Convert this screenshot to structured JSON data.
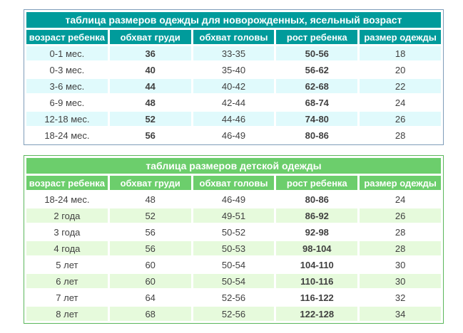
{
  "page": {
    "background": "#ffffff"
  },
  "tables": [
    {
      "id": "newborn-sizes",
      "title": "таблица размеров одежды для новорожденных, ясельный возраст",
      "headers": [
        "возраст ребенка",
        "обхват груди",
        "обхват головы",
        "рост ребенка",
        "размер одежды"
      ],
      "rows": [
        [
          "0-1 мес.",
          "36",
          "33-35",
          "50-56",
          "18"
        ],
        [
          "0-3 мес.",
          "40",
          "35-40",
          "56-62",
          "20"
        ],
        [
          "3-6 мес.",
          "44",
          "40-42",
          "62-68",
          "22"
        ],
        [
          "6-9 мес.",
          "48",
          "42-44",
          "68-74",
          "24"
        ],
        [
          "12-18 мес.",
          "52",
          "44-46",
          "74-80",
          "26"
        ],
        [
          "18-24 мес.",
          "56",
          "46-49",
          "80-86",
          "28"
        ]
      ],
      "bold_columns": [
        1,
        3
      ],
      "striped_rows": "even",
      "colors": {
        "header_bg": "#009b9b",
        "header_text": "#ffffff",
        "stripe_bg": "#e0fafc",
        "row_bg": "#ffffff",
        "border": "#7f9db9",
        "text": "#404040"
      }
    },
    {
      "id": "children-sizes",
      "title": "таблица размеров детской одежды",
      "headers": [
        "возраст ребенка",
        "обхват груди",
        "обхват головы",
        "рост ребенка",
        "размер одежды"
      ],
      "rows": [
        [
          "18-24 мес.",
          "48",
          "46-49",
          "80-86",
          "24"
        ],
        [
          "2 года",
          "52",
          "49-51",
          "86-92",
          "26"
        ],
        [
          "3 года",
          "56",
          "50-52",
          "92-98",
          "28"
        ],
        [
          "4 года",
          "56",
          "50-53",
          "98-104",
          "28"
        ],
        [
          "5 лет",
          "60",
          "50-54",
          "104-110",
          "30"
        ],
        [
          "6 лет",
          "60",
          "50-54",
          "110-116",
          "30"
        ],
        [
          "7 лет",
          "64",
          "52-56",
          "116-122",
          "32"
        ],
        [
          "8 лет",
          "68",
          "52-56",
          "122-128",
          "34"
        ]
      ],
      "bold_columns": [
        3
      ],
      "striped_rows": "odd",
      "colors": {
        "header_bg": "#6cce6c",
        "header_text": "#ffffff",
        "stripe_bg": "#e6fadc",
        "row_bg": "#ffffff",
        "border": "#5bb75b",
        "text": "#404040"
      }
    }
  ]
}
